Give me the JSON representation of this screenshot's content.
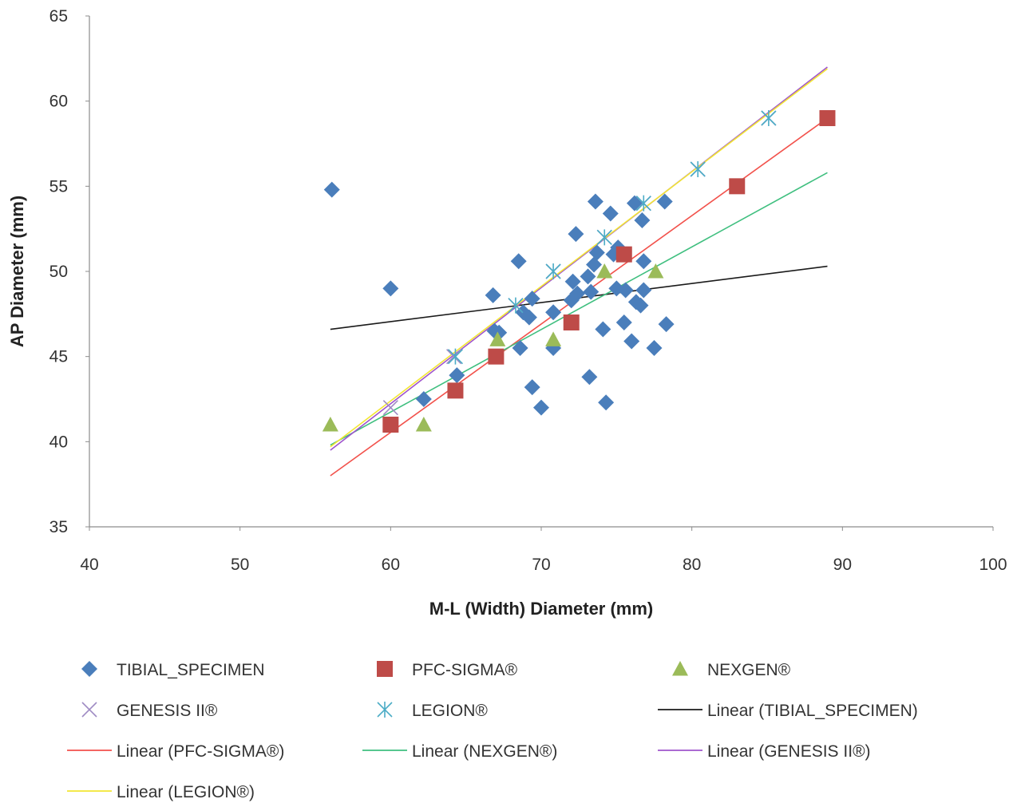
{
  "chart_data": {
    "type": "scatter",
    "title": "",
    "xlabel": "M-L (Width) Diameter (mm)",
    "ylabel": "AP Diameter (mm)",
    "xlim": [
      40,
      100
    ],
    "ylim": [
      35,
      65
    ],
    "xticks": [
      "40",
      "50",
      "60",
      "70",
      "80",
      "90",
      "100"
    ],
    "yticks": [
      "35",
      "40",
      "45",
      "50",
      "55",
      "60",
      "65"
    ],
    "grid": false,
    "legend_position": "bottom",
    "series": [
      {
        "name": "TIBIAL_SPECIMEN",
        "marker": "diamond",
        "color": "#4a7ebb",
        "points": [
          [
            56.1,
            54.8
          ],
          [
            60.0,
            49.0
          ],
          [
            62.2,
            42.5
          ],
          [
            64.4,
            43.9
          ],
          [
            66.8,
            48.6
          ],
          [
            66.9,
            46.5
          ],
          [
            67.2,
            46.4
          ],
          [
            68.5,
            50.6
          ],
          [
            68.6,
            45.5
          ],
          [
            68.8,
            47.6
          ],
          [
            69.2,
            47.3
          ],
          [
            69.4,
            48.4
          ],
          [
            69.4,
            43.2
          ],
          [
            70.0,
            42.0
          ],
          [
            70.8,
            47.6
          ],
          [
            70.8,
            45.5
          ],
          [
            72.0,
            48.3
          ],
          [
            72.1,
            49.4
          ],
          [
            72.3,
            52.2
          ],
          [
            72.4,
            48.7
          ],
          [
            73.1,
            49.7
          ],
          [
            73.2,
            43.8
          ],
          [
            73.3,
            48.8
          ],
          [
            73.5,
            50.4
          ],
          [
            73.6,
            54.1
          ],
          [
            73.7,
            51.1
          ],
          [
            74.1,
            46.6
          ],
          [
            74.3,
            42.3
          ],
          [
            74.6,
            53.4
          ],
          [
            74.8,
            51.0
          ],
          [
            75.0,
            49.0
          ],
          [
            75.1,
            51.4
          ],
          [
            75.5,
            47.0
          ],
          [
            75.6,
            48.9
          ],
          [
            76.0,
            45.9
          ],
          [
            76.2,
            54.0
          ],
          [
            76.3,
            48.2
          ],
          [
            76.6,
            48.0
          ],
          [
            76.7,
            53.0
          ],
          [
            76.8,
            50.6
          ],
          [
            76.8,
            48.9
          ],
          [
            77.5,
            45.5
          ],
          [
            78.2,
            54.1
          ],
          [
            78.3,
            46.9
          ]
        ]
      },
      {
        "name": "PFC-SIGMA®",
        "marker": "square",
        "color": "#be4b48",
        "points": [
          [
            60,
            41
          ],
          [
            64.3,
            43
          ],
          [
            67,
            45
          ],
          [
            72,
            47
          ],
          [
            75.5,
            51
          ],
          [
            83,
            55
          ],
          [
            89,
            59
          ]
        ]
      },
      {
        "name": "NEXGEN®",
        "marker": "triangle",
        "color": "#9bbb59",
        "points": [
          [
            56,
            41
          ],
          [
            62.2,
            41
          ],
          [
            67.1,
            46
          ],
          [
            70.8,
            46
          ],
          [
            74.2,
            50
          ],
          [
            77.6,
            50
          ]
        ]
      },
      {
        "name": "GENESIS II®",
        "marker": "x",
        "color": "#9f8bc4",
        "points": [
          [
            60,
            42
          ],
          [
            64.2,
            45
          ],
          [
            68.3,
            48
          ],
          [
            70.8,
            50
          ],
          [
            74.2,
            52
          ],
          [
            76.8,
            54
          ],
          [
            80.4,
            56
          ],
          [
            85.1,
            59
          ]
        ]
      },
      {
        "name": "LEGION®",
        "marker": "star",
        "color": "#4bacc6",
        "points": [
          [
            64.3,
            45
          ],
          [
            68.3,
            48
          ],
          [
            70.8,
            50
          ],
          [
            74.2,
            52
          ],
          [
            76.8,
            54
          ],
          [
            80.4,
            56
          ],
          [
            85.1,
            59
          ]
        ]
      }
    ],
    "trendlines": [
      {
        "name": "Linear (TIBIAL_SPECIMEN)",
        "color": "#1a1a1a",
        "x": [
          56,
          89
        ],
        "y": [
          46.6,
          50.3
        ]
      },
      {
        "name": "Linear (PFC-SIGMA®)",
        "color": "#f2514b",
        "x": [
          56,
          89
        ],
        "y": [
          38.0,
          59.0
        ]
      },
      {
        "name": "Linear (NEXGEN®)",
        "color": "#3fbf7f",
        "x": [
          56,
          89
        ],
        "y": [
          39.8,
          55.8
        ]
      },
      {
        "name": "Linear (GENESIS II®)",
        "color": "#9f54cc",
        "x": [
          56,
          89
        ],
        "y": [
          39.5,
          62.0
        ]
      },
      {
        "name": "Linear (LEGION®)",
        "color": "#f2e633",
        "x": [
          56,
          89
        ],
        "y": [
          39.7,
          61.9
        ]
      }
    ]
  }
}
